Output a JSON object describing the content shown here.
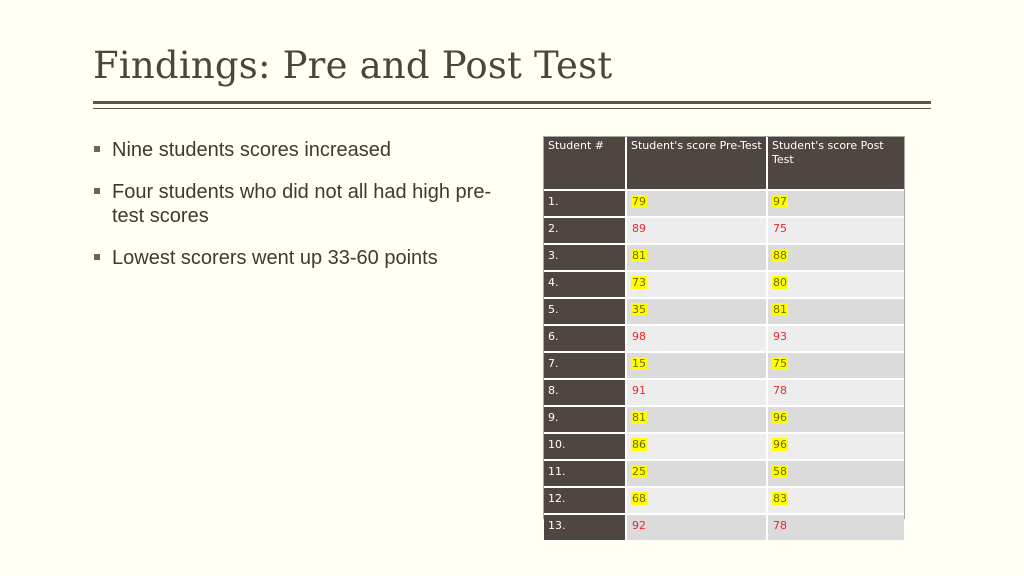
{
  "slide": {
    "title": "Findings: Pre and Post Test",
    "bullets": [
      "Nine students scores increased",
      "Four students who did not all had high pre-test scores",
      "Lowest scorers went up 33-60 points"
    ]
  },
  "table": {
    "headers": [
      "Student #",
      "Student's score Pre-Test",
      "Student's score Post Test"
    ],
    "highlight_color": "#ffff00",
    "decrease_text_color": "#e8282c",
    "header_bg": "#4f4641",
    "rows": [
      {
        "student": "1.",
        "pre": "79",
        "post": "97",
        "increased": true
      },
      {
        "student": "2.",
        "pre": "89",
        "post": "75",
        "increased": false
      },
      {
        "student": "3.",
        "pre": "81",
        "post": "88",
        "increased": true
      },
      {
        "student": "4.",
        "pre": "73",
        "post": "80",
        "increased": true
      },
      {
        "student": "5.",
        "pre": "35",
        "post": "81",
        "increased": true
      },
      {
        "student": "6.",
        "pre": "98",
        "post": "93",
        "increased": false
      },
      {
        "student": "7.",
        "pre": "15",
        "post": "75",
        "increased": true
      },
      {
        "student": "8.",
        "pre": "91",
        "post": "78",
        "increased": false
      },
      {
        "student": "9.",
        "pre": "81",
        "post": "96",
        "increased": true
      },
      {
        "student": "10.",
        "pre": "86",
        "post": "96",
        "increased": true
      },
      {
        "student": "11.",
        "pre": "25",
        "post": "58",
        "increased": true
      },
      {
        "student": "12.",
        "pre": "68",
        "post": "83",
        "increased": true
      },
      {
        "student": "13.",
        "pre": "92",
        "post": "78",
        "increased": false
      }
    ]
  }
}
